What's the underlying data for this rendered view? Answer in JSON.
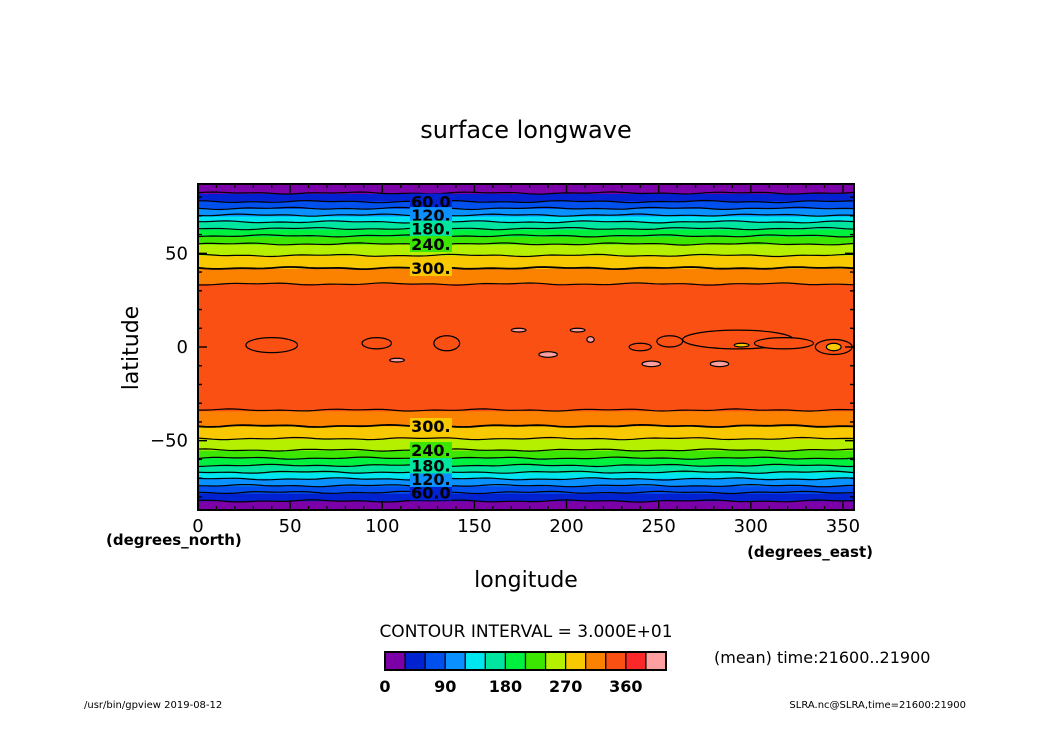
{
  "chart_data": {
    "type": "heatmap",
    "title": "surface longwave",
    "xlabel": "longitude",
    "ylabel": "latitude",
    "x_unit": "(degrees_east)",
    "y_unit": "(degrees_north)",
    "xlim": [
      0,
      356
    ],
    "ylim": [
      -87,
      87
    ],
    "x_ticks": [
      0,
      50,
      100,
      150,
      200,
      250,
      300,
      350
    ],
    "y_ticks": [
      -50,
      0,
      50
    ],
    "y_tick_labels": [
      "−50",
      "0",
      "50"
    ],
    "contour_interval_label": "CONTOUR INTERVAL = 3.000E+01",
    "contour_line_labels": [
      "60.0",
      "120.",
      "180.",
      "240.",
      "300."
    ],
    "levels": [
      0,
      30,
      60,
      90,
      120,
      150,
      180,
      210,
      240,
      270,
      300,
      330,
      360,
      390
    ],
    "colorbar_tick_labels": [
      "0",
      "90",
      "180",
      "270",
      "360"
    ],
    "colors": [
      "#7b00a8",
      "#0022d0",
      "#0050ee",
      "#0a90ff",
      "#00e6f0",
      "#00e6a0",
      "#00f040",
      "#3ce600",
      "#b4f000",
      "#f8c800",
      "#fa8200",
      "#fa5014",
      "#fa2828",
      "#ffa0a0"
    ],
    "lat_profile": [
      {
        "lat": -87,
        "value": 8
      },
      {
        "lat": -80,
        "value": 40
      },
      {
        "lat": -74,
        "value": 90
      },
      {
        "lat": -68,
        "value": 140
      },
      {
        "lat": -62,
        "value": 190
      },
      {
        "lat": -56,
        "value": 235
      },
      {
        "lat": -50,
        "value": 265
      },
      {
        "lat": -44,
        "value": 292
      },
      {
        "lat": -38,
        "value": 318
      },
      {
        "lat": -30,
        "value": 340
      },
      {
        "lat": -20,
        "value": 350
      },
      {
        "lat": 0,
        "value": 352
      },
      {
        "lat": 20,
        "value": 350
      },
      {
        "lat": 30,
        "value": 340
      },
      {
        "lat": 38,
        "value": 318
      },
      {
        "lat": 44,
        "value": 292
      },
      {
        "lat": 50,
        "value": 265
      },
      {
        "lat": 56,
        "value": 235
      },
      {
        "lat": 62,
        "value": 190
      },
      {
        "lat": 68,
        "value": 140
      },
      {
        "lat": 74,
        "value": 90
      },
      {
        "lat": 80,
        "value": 40
      },
      {
        "lat": 87,
        "value": 8
      }
    ]
  },
  "annotations": {
    "time_note": "(mean) time:21600..21900",
    "footer_left": "/usr/bin/gpview   2019-08-12",
    "footer_right": "SLRA.nc@SLRA,time=21600:21900"
  }
}
